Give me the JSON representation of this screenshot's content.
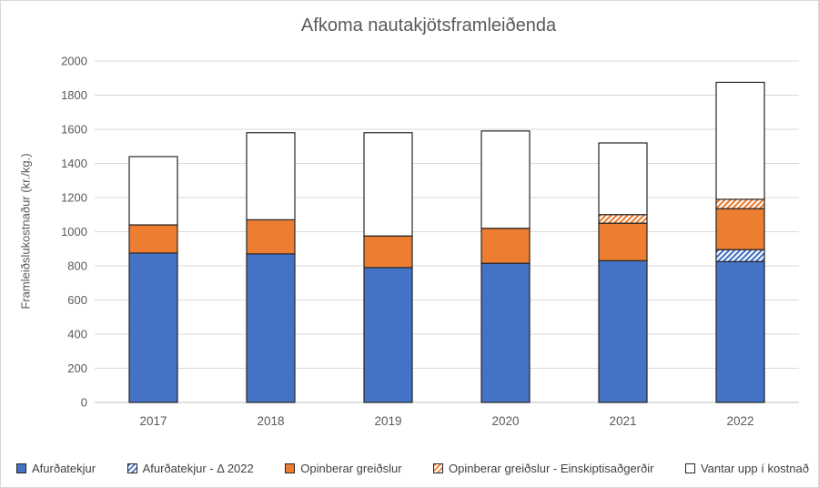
{
  "chart": {
    "title": "Afkoma nautakjötsframleiðenda",
    "y_axis_title": "Framleiðslukostnaður (kr./kg.)"
  },
  "chart_data": {
    "type": "bar",
    "stacked": true,
    "title": "Afkoma nautakjötsframleiðenda",
    "xlabel": "",
    "ylabel": "Framleiðslukostnaður (kr./kg.)",
    "ylim": [
      0,
      2000
    ],
    "ytick_step": 200,
    "grid": true,
    "legend_position": "bottom",
    "categories": [
      "2017",
      "2018",
      "2019",
      "2020",
      "2021",
      "2022"
    ],
    "series": [
      {
        "name": "Afurðatekjur",
        "style": "solid-blue",
        "values": [
          875,
          870,
          790,
          815,
          830,
          825
        ]
      },
      {
        "name": "Afurðatekjur - Δ 2022",
        "style": "hatch-blue",
        "values": [
          0,
          0,
          0,
          0,
          0,
          70
        ]
      },
      {
        "name": "Opinberar greiðslur",
        "style": "solid-orange",
        "values": [
          165,
          200,
          185,
          205,
          220,
          240
        ]
      },
      {
        "name": "Opinberar greiðslur - Einskiptisaðgerðir",
        "style": "hatch-orange",
        "values": [
          0,
          0,
          0,
          0,
          50,
          55
        ]
      },
      {
        "name": "Vantar upp í kostnað",
        "style": "white",
        "values": [
          400,
          510,
          605,
          570,
          420,
          685
        ]
      }
    ],
    "bar_totals": [
      1440,
      1580,
      1580,
      1590,
      1520,
      1875
    ],
    "colors": {
      "blue": "#4472C4",
      "orange": "#ED7D31",
      "white": "#FFFFFF",
      "bar_border": "#262626",
      "gridline": "#D9D9D9",
      "axis_line": "#BFBFBF",
      "text": "#595959",
      "legend_text": "#404040",
      "frame_border": "#D9D9D9"
    }
  }
}
